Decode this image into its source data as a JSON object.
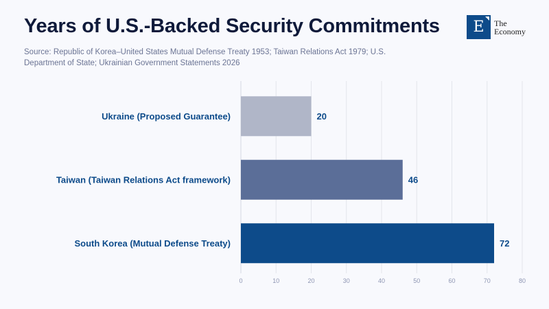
{
  "header": {
    "title": "Years of U.S.-Backed Security Commitments",
    "source": "Source: Republic of Korea–United States Mutual Defense Treaty 1953; Taiwan Relations Act 1979; U.S. Department of State; Ukrainian Government Statements 2026"
  },
  "logo": {
    "letter": "E",
    "line1": "The",
    "line2": "Economy"
  },
  "chart_data": {
    "type": "bar",
    "orientation": "horizontal",
    "title": "Years of U.S.-Backed Security Commitments",
    "xlabel": "",
    "ylabel": "",
    "categories": [
      "Ukraine (Proposed Guarantee)",
      "Taiwan (Taiwan Relations Act framework)",
      "South Korea (Mutual Defense Treaty)"
    ],
    "values": [
      20,
      46,
      72
    ],
    "colors": [
      "#b0b6c8",
      "#5b6e98",
      "#0d4b8a"
    ],
    "xlim": [
      0,
      80
    ],
    "xticks": [
      0,
      10,
      20,
      30,
      40,
      50,
      60,
      70,
      80
    ],
    "grid": true,
    "data_labels": [
      "20",
      "46",
      "72"
    ]
  }
}
